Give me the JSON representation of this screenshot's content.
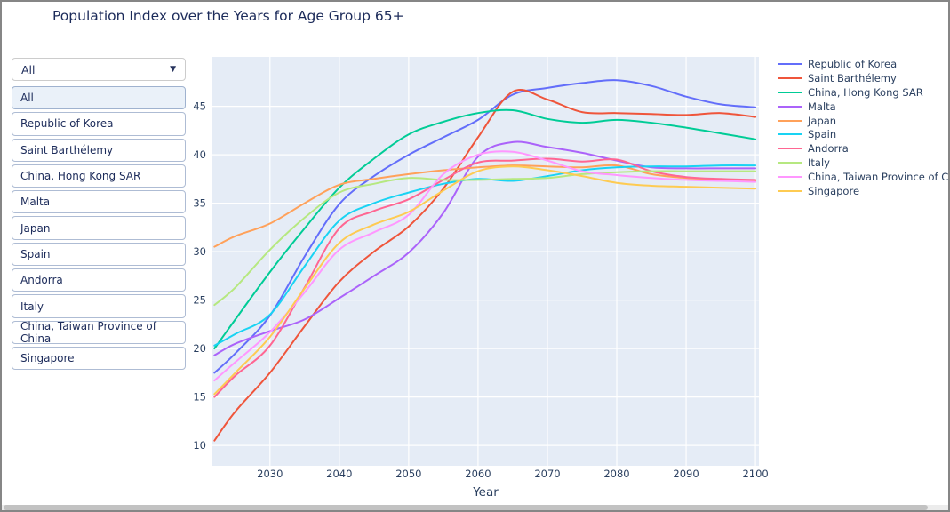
{
  "title": "Population Index over the Years for Age Group 65+",
  "glyphs": {
    "dropdown_arrow": "▼"
  },
  "dropdown": {
    "selected": "All",
    "options": [
      "All",
      "Republic of Korea",
      "Saint Barthélemy",
      "China, Hong Kong SAR",
      "Malta",
      "Japan",
      "Spain",
      "Andorra",
      "Italy",
      "China, Taiwan Province of China",
      "Singapore"
    ]
  },
  "chart_data": {
    "type": "line",
    "title": "",
    "xlabel": "Year",
    "ylabel": "",
    "plot_bg": "#E5ECF6",
    "grid": true,
    "grid_color": "#ffffff",
    "tick_color": "#2a3f5f",
    "legend_position": "right",
    "x_range": [
      2021.7,
      2100.5
    ],
    "y_range": [
      7.9,
      50.1
    ],
    "x_ticks": [
      2030,
      2040,
      2050,
      2060,
      2070,
      2080,
      2090,
      2100
    ],
    "y_ticks": [
      10,
      15,
      20,
      25,
      30,
      35,
      40,
      45
    ],
    "x": [
      2022,
      2025,
      2030,
      2035,
      2040,
      2045,
      2050,
      2055,
      2060,
      2065,
      2070,
      2075,
      2080,
      2085,
      2090,
      2095,
      2100
    ],
    "series": [
      {
        "name": "Republic of Korea",
        "color": "#636EFA",
        "values": [
          17.5,
          19.5,
          23.4,
          29.5,
          34.9,
          37.8,
          40.0,
          41.8,
          43.6,
          46.2,
          46.9,
          47.4,
          47.7,
          47.1,
          46.0,
          45.2,
          44.9
        ]
      },
      {
        "name": "Saint Barthélemy",
        "color": "#EF553B",
        "values": [
          10.5,
          13.5,
          17.5,
          22.3,
          26.9,
          30.0,
          32.6,
          36.5,
          41.8,
          46.5,
          45.7,
          44.4,
          44.3,
          44.2,
          44.1,
          44.3,
          43.9
        ]
      },
      {
        "name": "China, Hong Kong SAR",
        "color": "#00CC96",
        "values": [
          20.0,
          23.0,
          27.9,
          32.4,
          36.6,
          39.6,
          42.1,
          43.4,
          44.3,
          44.6,
          43.7,
          43.3,
          43.6,
          43.3,
          42.8,
          42.2,
          41.6
        ]
      },
      {
        "name": "Malta",
        "color": "#AB63FA",
        "values": [
          19.3,
          20.5,
          21.8,
          23.0,
          25.2,
          27.5,
          29.9,
          34.0,
          39.8,
          41.3,
          40.8,
          40.2,
          39.4,
          38.7,
          38.6,
          38.6,
          38.6
        ]
      },
      {
        "name": "Japan",
        "color": "#FFA15A",
        "values": [
          30.5,
          31.6,
          32.9,
          35.0,
          36.9,
          37.5,
          38.0,
          38.4,
          38.7,
          38.9,
          38.8,
          38.7,
          38.9,
          38.0,
          37.6,
          37.4,
          37.3
        ]
      },
      {
        "name": "Spain",
        "color": "#19D3F3",
        "values": [
          20.3,
          21.5,
          23.5,
          28.5,
          33.2,
          35.0,
          36.1,
          37.0,
          37.5,
          37.3,
          37.8,
          38.4,
          38.7,
          38.8,
          38.8,
          38.9,
          38.9
        ]
      },
      {
        "name": "Andorra",
        "color": "#FF6692",
        "values": [
          15.0,
          17.2,
          20.3,
          26.3,
          32.4,
          34.2,
          35.4,
          37.4,
          39.2,
          39.4,
          39.6,
          39.3,
          39.5,
          38.3,
          37.7,
          37.5,
          37.4
        ]
      },
      {
        "name": "Italy",
        "color": "#B6E880",
        "values": [
          24.5,
          26.3,
          30.2,
          33.5,
          36.1,
          37.0,
          37.6,
          37.4,
          37.4,
          37.5,
          37.6,
          38.0,
          38.2,
          38.3,
          38.3,
          38.3,
          38.3
        ]
      },
      {
        "name": "China, Taiwan Province of China",
        "color": "#FF97FF",
        "values": [
          16.7,
          18.6,
          21.7,
          25.8,
          30.2,
          32.0,
          33.8,
          38.0,
          40.0,
          40.3,
          39.4,
          38.3,
          37.9,
          37.6,
          37.4,
          37.3,
          37.2
        ]
      },
      {
        "name": "Singapore",
        "color": "#FECB52",
        "values": [
          15.3,
          17.5,
          21.2,
          26.2,
          30.9,
          32.8,
          34.1,
          36.3,
          38.3,
          38.8,
          38.4,
          37.8,
          37.1,
          36.8,
          36.7,
          36.6,
          36.5
        ]
      }
    ]
  }
}
